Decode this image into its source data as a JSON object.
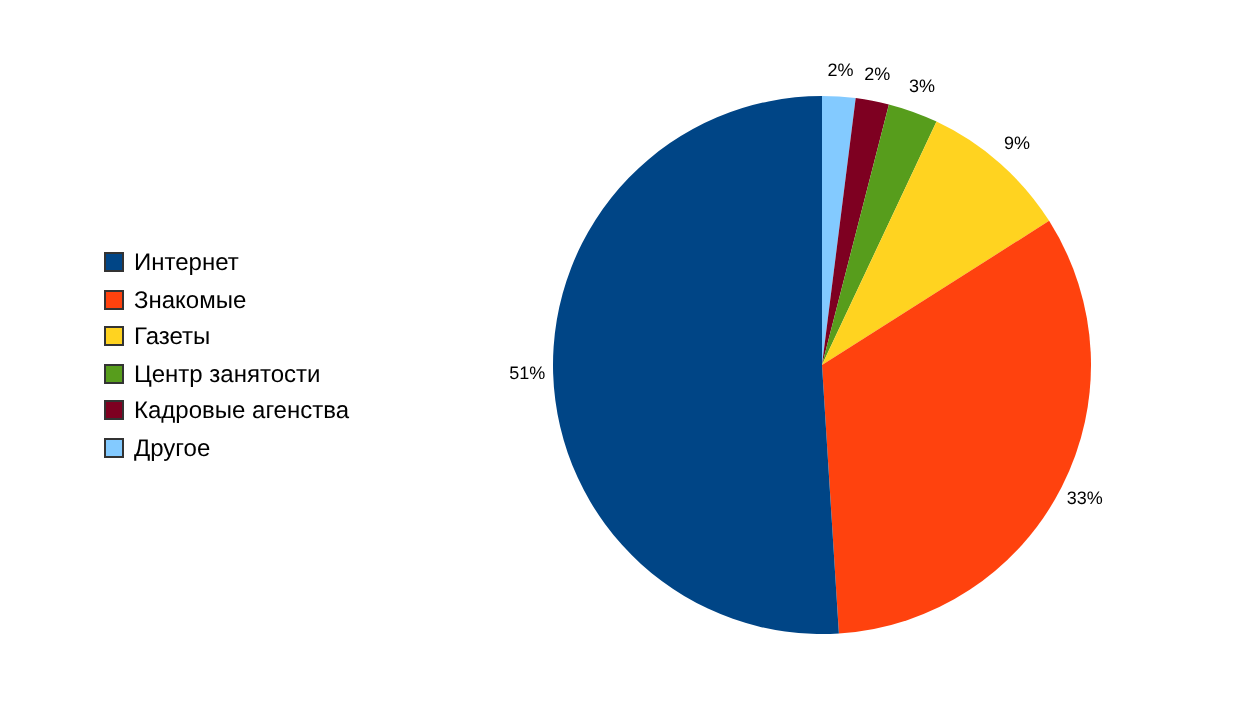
{
  "chart_data": {
    "type": "pie",
    "categories": [
      "Интернет",
      "Знакомые",
      "Газеты",
      "Центр занятости",
      "Кадровые агенства",
      "Другое"
    ],
    "values": [
      51,
      33,
      9,
      3,
      2,
      2
    ],
    "value_labels": [
      "51%",
      "33%",
      "9%",
      "3%",
      "2%",
      "2%"
    ],
    "colors": [
      "#004586",
      "#ff420e",
      "#ffd320",
      "#579d1c",
      "#7e0021",
      "#83caff"
    ],
    "legend": "left"
  }
}
